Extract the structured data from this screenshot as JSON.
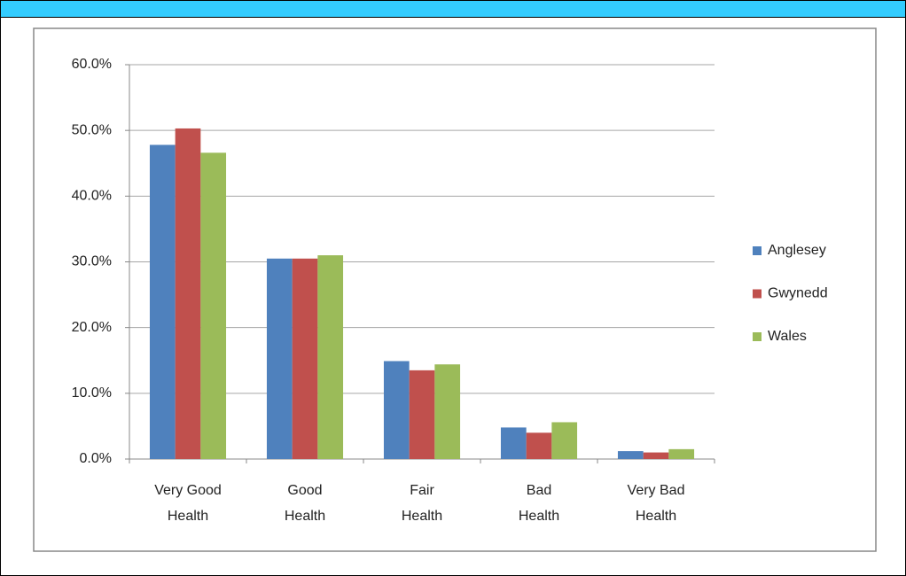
{
  "chart_data": {
    "type": "bar",
    "categories": [
      "Very Good Health",
      "Good Health",
      "Fair Health",
      "Bad Health",
      "Very Bad Health"
    ],
    "series": [
      {
        "name": "Anglesey",
        "color": "#4f81bd",
        "values": [
          47.8,
          30.5,
          14.9,
          4.8,
          1.2
        ]
      },
      {
        "name": "Gwynedd",
        "color": "#c0504d",
        "values": [
          50.3,
          30.5,
          13.5,
          4.0,
          1.0
        ]
      },
      {
        "name": "Wales",
        "color": "#9bbb59",
        "values": [
          46.6,
          31.0,
          14.4,
          5.6,
          1.5
        ]
      }
    ],
    "ylim": [
      0,
      60
    ],
    "yticks": [
      {
        "value": 0,
        "label": "0.0%"
      },
      {
        "value": 10,
        "label": "10.0%"
      },
      {
        "value": 20,
        "label": "20.0%"
      },
      {
        "value": 30,
        "label": "30.0%"
      },
      {
        "value": 40,
        "label": "40.0%"
      },
      {
        "value": 50,
        "label": "50.0%"
      },
      {
        "value": 60,
        "label": "60.0%"
      }
    ],
    "grid": true,
    "legend": "right"
  }
}
